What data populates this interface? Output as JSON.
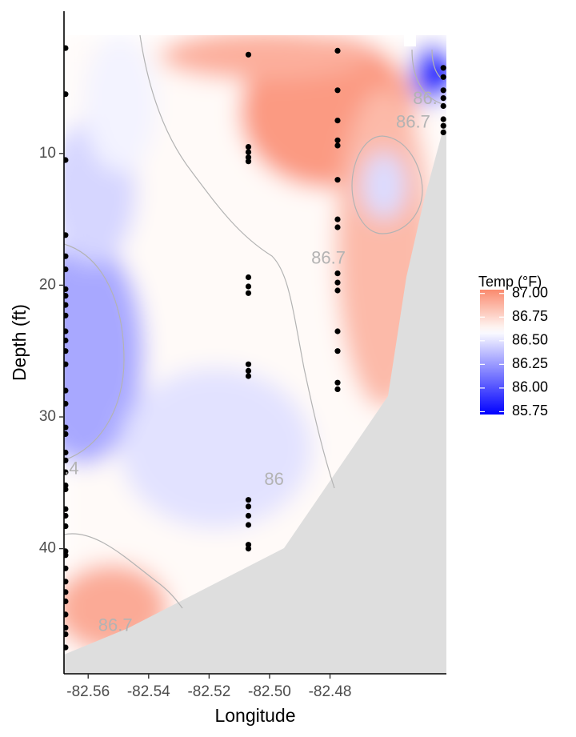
{
  "chart_data": {
    "type": "heatmap",
    "title": "",
    "xlabel": "Longitude",
    "ylabel": "Depth (ft)",
    "xlim": [
      -82.568,
      -82.4415
    ],
    "ylim": [
      49.5,
      -0.8
    ],
    "y_reversed": true,
    "x_ticks": [
      -82.56,
      -82.54,
      -82.52,
      -82.5,
      -82.48
    ],
    "x_tick_labels": [
      "-82.56",
      "-82.54",
      "-82.52",
      "-82.50",
      "-82.48"
    ],
    "y_ticks": [
      10,
      20,
      30,
      40
    ],
    "y_tick_labels": [
      "10",
      "20",
      "30",
      "40"
    ],
    "grid": false,
    "legend": {
      "title": "Temp (°F)",
      "placement": "right",
      "breaks": [
        87.0,
        86.75,
        86.5,
        86.25,
        86.0,
        85.75
      ],
      "labels": [
        "87.00",
        "86.75",
        "86.50",
        "86.25",
        "86.00",
        "85.75"
      ],
      "range": [
        85.72,
        87.04
      ],
      "colors": {
        "low": "#0000ff",
        "mid": "#ffffff",
        "high": "#fa8a6e",
        "midpoint": 86.6
      }
    },
    "bathymetry_fill": "#dedede",
    "stations": [
      {
        "lon": -82.5675,
        "depths": [
          2,
          5.5,
          10.5,
          16.2,
          17.8,
          18.8,
          20.3,
          20.8,
          21.5,
          22.3,
          23.5,
          24.2,
          25,
          26,
          28,
          29,
          30.8,
          31.3,
          32.7,
          33.3,
          34.2,
          35.2,
          35.5,
          37,
          37.5,
          38.3,
          40.2,
          40.5,
          41.5,
          42.5,
          43.3,
          44,
          45,
          46,
          46.5,
          47.5
        ]
      },
      {
        "lon": -82.507,
        "depths": [
          2.5,
          9.5,
          9.9,
          10.3,
          10.6,
          19.4,
          20.1,
          20.6,
          26,
          26.5,
          26.9,
          36.3,
          36.8,
          37.5,
          38.2,
          39.7,
          40
        ]
      },
      {
        "lon": -82.4775,
        "depths": [
          2.2,
          5.2,
          7.5,
          9,
          9.4,
          12,
          15,
          15.6,
          19.1,
          19.8,
          20.4,
          23.5,
          25,
          27.4,
          27.9
        ]
      },
      {
        "lon": -82.4425,
        "depths": [
          3.5,
          4.2,
          5.2,
          5.8,
          6.4,
          7.4,
          7.9,
          8.4
        ]
      }
    ],
    "contour_labels": [
      {
        "text": "86.7",
        "lon": -82.4805,
        "depth": 18.0
      },
      {
        "text": "86.7",
        "lon": -82.4525,
        "depth": 7.7
      },
      {
        "text": "86.",
        "lon": -82.4485,
        "depth": 5.9
      },
      {
        "text": "86",
        "lon": -82.4985,
        "depth": 34.8
      },
      {
        "text": ".4",
        "lon": -82.5655,
        "depth": 34.0
      },
      {
        "text": "86.7",
        "lon": -82.551,
        "depth": 45.9
      }
    ]
  }
}
